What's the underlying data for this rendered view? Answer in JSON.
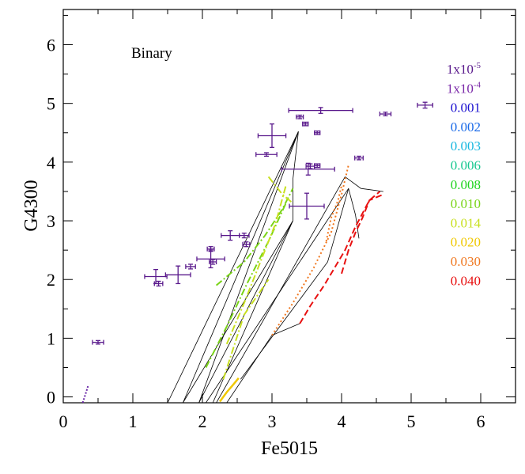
{
  "chart_data": {
    "type": "scatter",
    "title": "",
    "annotation": "Binary",
    "xlabel": "Fe5015",
    "ylabel": "G4300",
    "xlim": [
      0,
      6.5
    ],
    "ylim": [
      -0.1,
      6.6
    ],
    "x_ticks": [
      "0",
      "1",
      "2",
      "3",
      "4",
      "5",
      "6"
    ],
    "y_ticks": [
      "0",
      "1",
      "2",
      "3",
      "4",
      "5",
      "6"
    ],
    "grid": false,
    "legend_position": "right",
    "points": {
      "name": "observed",
      "color": "#5a1a8c",
      "data": [
        {
          "x": 0.5,
          "y": 0.93,
          "xerr": 0.08,
          "yerr": 0.03
        },
        {
          "x": 1.33,
          "y": 2.05,
          "xerr": 0.16,
          "yerr": 0.12
        },
        {
          "x": 1.37,
          "y": 1.93,
          "xerr": 0.06,
          "yerr": 0.04
        },
        {
          "x": 1.65,
          "y": 2.08,
          "xerr": 0.18,
          "yerr": 0.15
        },
        {
          "x": 1.83,
          "y": 2.22,
          "xerr": 0.07,
          "yerr": 0.04
        },
        {
          "x": 2.12,
          "y": 2.35,
          "xerr": 0.2,
          "yerr": 0.15
        },
        {
          "x": 2.12,
          "y": 2.52,
          "xerr": 0.05,
          "yerr": 0.04
        },
        {
          "x": 2.15,
          "y": 2.3,
          "xerr": 0.05,
          "yerr": 0.04
        },
        {
          "x": 2.4,
          "y": 2.75,
          "xerr": 0.13,
          "yerr": 0.08
        },
        {
          "x": 2.6,
          "y": 2.75,
          "xerr": 0.07,
          "yerr": 0.04
        },
        {
          "x": 2.63,
          "y": 2.6,
          "xerr": 0.05,
          "yerr": 0.04
        },
        {
          "x": 2.92,
          "y": 4.13,
          "xerr": 0.15,
          "yerr": 0.03
        },
        {
          "x": 3.0,
          "y": 4.45,
          "xerr": 0.2,
          "yerr": 0.2
        },
        {
          "x": 3.4,
          "y": 4.77,
          "xerr": 0.05,
          "yerr": 0.03
        },
        {
          "x": 3.48,
          "y": 4.65,
          "xerr": 0.04,
          "yerr": 0.03
        },
        {
          "x": 3.52,
          "y": 3.88,
          "xerr": 0.38,
          "yerr": 0.1
        },
        {
          "x": 3.55,
          "y": 3.93,
          "xerr": 0.06,
          "yerr": 0.04
        },
        {
          "x": 3.65,
          "y": 3.94,
          "xerr": 0.04,
          "yerr": 0.03
        },
        {
          "x": 3.65,
          "y": 4.5,
          "xerr": 0.04,
          "yerr": 0.03
        },
        {
          "x": 3.7,
          "y": 4.88,
          "xerr": 0.46,
          "yerr": 0.05
        },
        {
          "x": 3.5,
          "y": 3.25,
          "xerr": 0.25,
          "yerr": 0.22
        },
        {
          "x": 4.25,
          "y": 4.07,
          "xerr": 0.06,
          "yerr": 0.03
        },
        {
          "x": 4.63,
          "y": 4.82,
          "xerr": 0.08,
          "yerr": 0.03
        },
        {
          "x": 5.2,
          "y": 4.97,
          "xerr": 0.11,
          "yerr": 0.05
        }
      ]
    },
    "legend": [
      {
        "label": "1x10",
        "sup": "-5",
        "color": "#5a1a8c"
      },
      {
        "label": "1x10",
        "sup": "-4",
        "color": "#7a28a8"
      },
      {
        "label": "0.001",
        "color": "#1a10d0"
      },
      {
        "label": "0.002",
        "color": "#1a6ae8"
      },
      {
        "label": "0.003",
        "color": "#18b8e0"
      },
      {
        "label": "0.006",
        "color": "#18c890"
      },
      {
        "label": "0.008",
        "color": "#20d420"
      },
      {
        "label": "0.010",
        "color": "#7ad418"
      },
      {
        "label": "0.014",
        "color": "#c8e020"
      },
      {
        "label": "0.020",
        "color": "#f0c800"
      },
      {
        "label": "0.030",
        "color": "#f07820"
      },
      {
        "label": "0.040",
        "color": "#e81010"
      }
    ],
    "series": [
      {
        "name": "1x10-5",
        "color": "#6a28a8",
        "dash": "2,2",
        "width": 2,
        "x": [
          0.28,
          0.32,
          0.36
        ],
        "y": [
          -0.1,
          0.05,
          0.2
        ]
      },
      {
        "name": "0.010",
        "color": "#7ad418",
        "dash": "9,3,2,3",
        "width": 2,
        "x": [
          2.2,
          2.6,
          2.9,
          3.15,
          3.3
        ],
        "y": [
          1.9,
          2.3,
          2.75,
          3.2,
          3.55
        ]
      },
      {
        "name": "0.010",
        "color": "#7ad418",
        "dash": "9,3,2,3",
        "width": 2,
        "x": [
          2.05,
          2.35,
          2.65,
          2.95,
          3.2
        ],
        "y": [
          0.5,
          1.2,
          1.95,
          2.65,
          3.3
        ]
      },
      {
        "name": "0.014",
        "color": "#c8e020",
        "dash": "9,3,2,3",
        "width": 2,
        "x": [
          2.35,
          2.6,
          2.8,
          3.05,
          3.2
        ],
        "y": [
          0.9,
          1.6,
          2.2,
          2.95,
          3.6
        ]
      },
      {
        "name": "0.014",
        "color": "#c8e020",
        "dash": "9,3,2,3",
        "width": 2,
        "x": [
          2.3,
          2.6,
          2.95
        ],
        "y": [
          0.3,
          1.4,
          2.0
        ]
      },
      {
        "name": "0.014",
        "color": "#c8e020",
        "dash": "9,3,2,3",
        "width": 2,
        "x": [
          2.95,
          3.15,
          3.3
        ],
        "y": [
          3.75,
          3.45,
          3.3
        ]
      },
      {
        "name": "0.020",
        "color": "#f0c800",
        "dash": "",
        "width": 2.5,
        "x": [
          2.25,
          2.35,
          2.45,
          2.52
        ],
        "y": [
          -0.08,
          0.08,
          0.22,
          0.32
        ]
      },
      {
        "name": "0.030",
        "color": "#f07820",
        "dash": "2,3",
        "width": 2,
        "x": [
          3.0,
          3.3,
          3.6,
          3.85,
          4.0,
          4.1
        ],
        "y": [
          1.05,
          1.6,
          2.2,
          2.8,
          3.45,
          3.95
        ]
      },
      {
        "name": "0.030",
        "color": "#f07820",
        "dash": "2,3",
        "width": 2,
        "x": [
          3.78,
          3.85,
          3.95,
          4.0
        ],
        "y": [
          2.65,
          3.05,
          3.35,
          3.6
        ]
      },
      {
        "name": "0.040",
        "color": "#e81010",
        "dash": "8,4",
        "width": 2,
        "x": [
          3.4,
          3.55,
          3.75,
          3.9,
          4.05,
          4.2,
          4.4,
          4.55
        ],
        "y": [
          1.25,
          1.55,
          1.9,
          2.2,
          2.5,
          2.9,
          3.35,
          3.5
        ]
      },
      {
        "name": "0.040",
        "color": "#e81010",
        "dash": "8,4",
        "width": 2,
        "x": [
          4.0,
          4.1,
          4.2,
          4.3,
          4.4,
          4.6
        ],
        "y": [
          2.1,
          2.5,
          2.8,
          3.05,
          3.35,
          3.45
        ]
      }
    ],
    "grid_lines": [
      {
        "x": [
          1.5,
          3.38
        ],
        "y": [
          -0.1,
          4.52
        ]
      },
      {
        "x": [
          1.72,
          3.38
        ],
        "y": [
          -0.1,
          4.52
        ]
      },
      {
        "x": [
          1.95,
          3.38
        ],
        "y": [
          -0.1,
          4.52
        ]
      },
      {
        "x": [
          1.72,
          3.3
        ],
        "y": [
          -0.1,
          3.0
        ]
      },
      {
        "x": [
          1.95,
          3.3
        ],
        "y": [
          -0.1,
          3.0
        ]
      },
      {
        "x": [
          2.15,
          3.3
        ],
        "y": [
          -0.1,
          3.0
        ]
      },
      {
        "x": [
          2.05,
          4.1
        ],
        "y": [
          -0.1,
          3.55
        ]
      },
      {
        "x": [
          2.2,
          4.05
        ],
        "y": [
          -0.1,
          3.75
        ]
      },
      {
        "x": [
          2.35,
          3.0
        ],
        "y": [
          -0.1,
          1.05
        ]
      },
      {
        "x": [
          3.0,
          3.4
        ],
        "y": [
          1.05,
          1.25
        ]
      },
      {
        "x": [
          3.38,
          3.3,
          3.3
        ],
        "y": [
          4.52,
          3.7,
          3.0
        ]
      },
      {
        "x": [
          4.05,
          4.28,
          4.6
        ],
        "y": [
          3.75,
          3.55,
          3.5
        ]
      },
      {
        "x": [
          4.1,
          4.2,
          4.25
        ],
        "y": [
          3.55,
          3.1,
          2.7
        ]
      },
      {
        "x": [
          2.55,
          3.8,
          4.1
        ],
        "y": [
          0.3,
          2.3,
          3.55
        ]
      }
    ]
  }
}
